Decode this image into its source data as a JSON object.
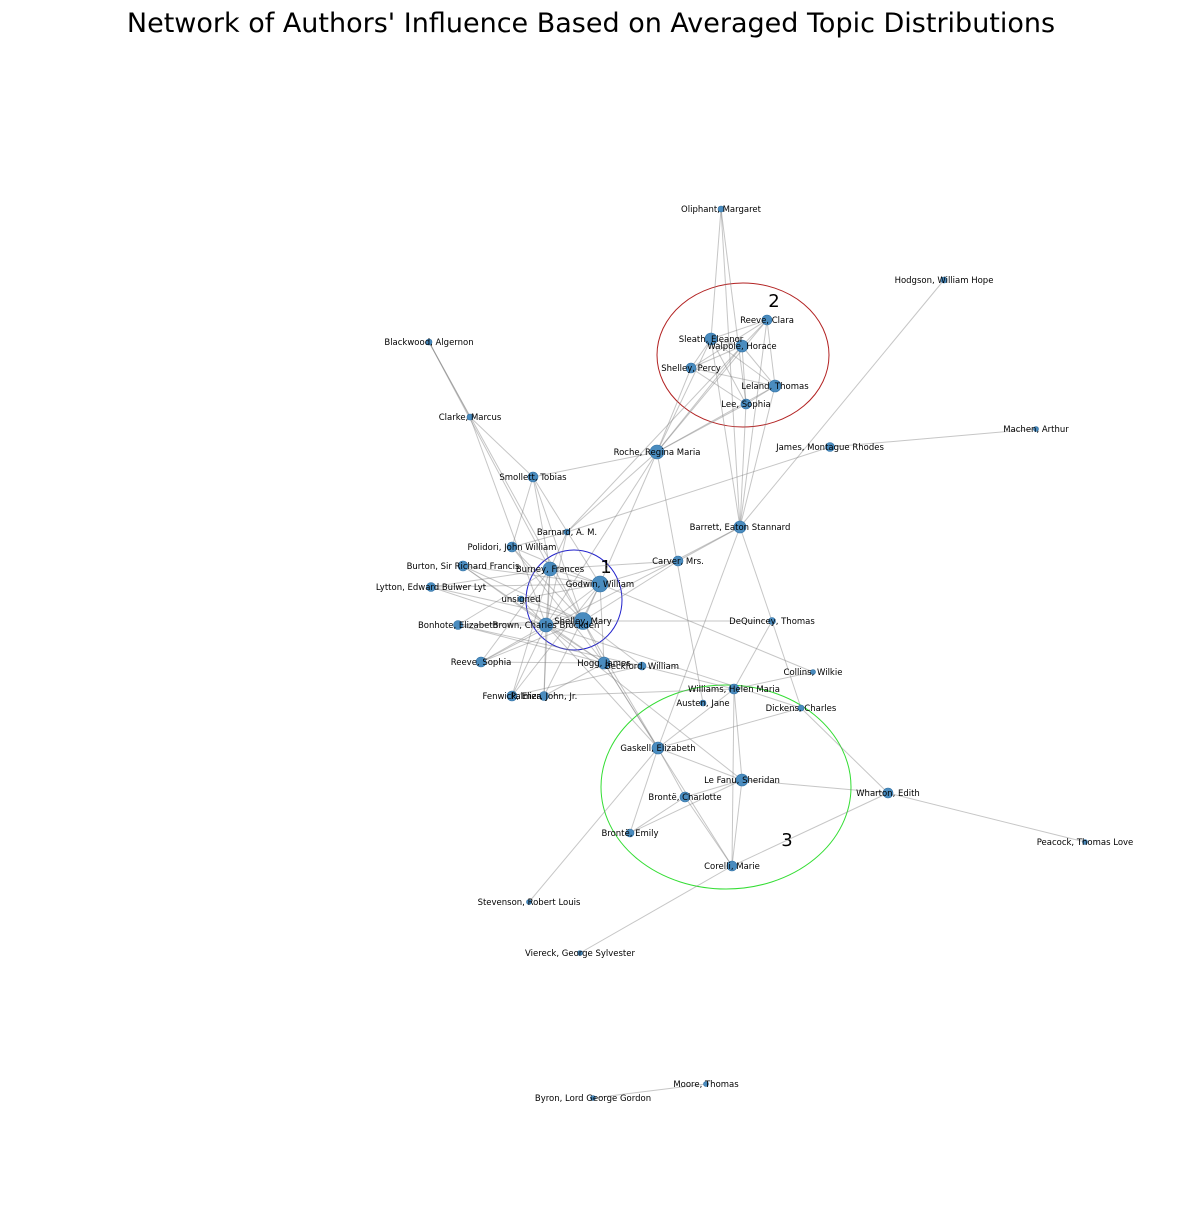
{
  "title": "Network of Authors' Influence Based on Averaged Topic Distributions",
  "colors": {
    "node": "#4a8cbf",
    "edge": "#808080",
    "cluster_1": "#2222cc",
    "cluster_2": "#b22222",
    "cluster_3": "#33dd33"
  },
  "nodes": [
    {
      "id": "oliphant",
      "label": "Oliphant, Margaret"
    },
    {
      "id": "hodgson",
      "label": "Hodgson, William Hope"
    },
    {
      "id": "reeve_clara",
      "label": "Reeve, Clara"
    },
    {
      "id": "sleath",
      "label": "Sleath, Eleanor"
    },
    {
      "id": "walpole",
      "label": "Walpole, Horace"
    },
    {
      "id": "blackwood",
      "label": "Blackwood, Algernon"
    },
    {
      "id": "shelley_percy",
      "label": "Shelley, Percy"
    },
    {
      "id": "leland",
      "label": "Leland, Thomas"
    },
    {
      "id": "lee",
      "label": "Lee, Sophia"
    },
    {
      "id": "clarke",
      "label": "Clarke, Marcus"
    },
    {
      "id": "machen",
      "label": "Machen, Arthur"
    },
    {
      "id": "james",
      "label": "James, Montague Rhodes"
    },
    {
      "id": "roche",
      "label": "Roche, Regina Maria"
    },
    {
      "id": "smollett",
      "label": "Smollett, Tobias"
    },
    {
      "id": "barrett",
      "label": "Barrett, Eaton Stannard"
    },
    {
      "id": "barnard",
      "label": "Barnard, A. M."
    },
    {
      "id": "polidori",
      "label": "Polidori, John William"
    },
    {
      "id": "carver",
      "label": "Carver, Mrs."
    },
    {
      "id": "burton",
      "label": "Burton, Sir Richard Francis"
    },
    {
      "id": "burney",
      "label": "Burney, Frances"
    },
    {
      "id": "godwin",
      "label": "Godwin, William"
    },
    {
      "id": "lytton",
      "label": "Lytton, Edward Bulwer Lyt"
    },
    {
      "id": "unsigned",
      "label": "unsigned"
    },
    {
      "id": "dequincey",
      "label": "DeQuincey, Thomas"
    },
    {
      "id": "shelley_mary",
      "label": "Shelley, Mary"
    },
    {
      "id": "bonhote",
      "label": "Bonhote, Elizabeth"
    },
    {
      "id": "brown",
      "label": "Brown, Charles Brockden"
    },
    {
      "id": "reeve_sophia",
      "label": "Reeve, Sophia"
    },
    {
      "id": "hogg",
      "label": "Hogg, James"
    },
    {
      "id": "beckford",
      "label": "Beckford, William"
    },
    {
      "id": "collins",
      "label": "Collins, Wilkie"
    },
    {
      "id": "williams",
      "label": "Williams, Helen Maria"
    },
    {
      "id": "fenwick",
      "label": "Fenwick, Eliza"
    },
    {
      "id": "palmer",
      "label": "Palmer, John, Jr."
    },
    {
      "id": "austen",
      "label": "Austen, Jane"
    },
    {
      "id": "dickens",
      "label": "Dickens, Charles"
    },
    {
      "id": "gaskell",
      "label": "Gaskell, Elizabeth"
    },
    {
      "id": "lefanu",
      "label": "Le Fanu, Sheridan"
    },
    {
      "id": "bronte_charlotte",
      "label": "Brontë, Charlotte"
    },
    {
      "id": "wharton",
      "label": "Wharton, Edith"
    },
    {
      "id": "peacock",
      "label": "Peacock, Thomas Love"
    },
    {
      "id": "bronte_emily",
      "label": "Brontë, Emily"
    },
    {
      "id": "corelli",
      "label": "Corelli, Marie"
    },
    {
      "id": "stevenson",
      "label": "Stevenson, Robert Louis"
    },
    {
      "id": "viereck",
      "label": "Viereck, George Sylvester"
    },
    {
      "id": "moore",
      "label": "Moore, Thomas"
    },
    {
      "id": "byron",
      "label": "Byron, Lord George Gordon"
    }
  ],
  "edges": [
    [
      "oliphant",
      "sleath"
    ],
    [
      "oliphant",
      "lee"
    ],
    [
      "oliphant",
      "barrett"
    ],
    [
      "hodgson",
      "barrett"
    ],
    [
      "machen",
      "james"
    ],
    [
      "james",
      "barnard"
    ],
    [
      "blackwood",
      "clarke"
    ],
    [
      "blackwood",
      "burney"
    ],
    [
      "blackwood",
      "shelley_mary"
    ],
    [
      "clarke",
      "smollett"
    ],
    [
      "clarke",
      "brown"
    ],
    [
      "reeve_clara",
      "sleath"
    ],
    [
      "reeve_clara",
      "walpole"
    ],
    [
      "reeve_clara",
      "shelley_percy"
    ],
    [
      "reeve_clara",
      "leland"
    ],
    [
      "reeve_clara",
      "roche"
    ],
    [
      "reeve_clara",
      "barrett"
    ],
    [
      "sleath",
      "walpole"
    ],
    [
      "sleath",
      "shelley_percy"
    ],
    [
      "sleath",
      "leland"
    ],
    [
      "sleath",
      "lee"
    ],
    [
      "sleath",
      "roche"
    ],
    [
      "sleath",
      "barrett"
    ],
    [
      "walpole",
      "shelley_percy"
    ],
    [
      "walpole",
      "leland"
    ],
    [
      "walpole",
      "lee"
    ],
    [
      "walpole",
      "roche"
    ],
    [
      "walpole",
      "barnard"
    ],
    [
      "shelley_percy",
      "lee"
    ],
    [
      "shelley_percy",
      "roche"
    ],
    [
      "shelley_percy",
      "leland"
    ],
    [
      "leland",
      "lee"
    ],
    [
      "leland",
      "roche"
    ],
    [
      "leland",
      "barrett"
    ],
    [
      "lee",
      "roche"
    ],
    [
      "lee",
      "barrett"
    ],
    [
      "roche",
      "smollett"
    ],
    [
      "roche",
      "godwin"
    ],
    [
      "roche",
      "austen"
    ],
    [
      "roche",
      "barnard"
    ],
    [
      "roche",
      "brown"
    ],
    [
      "smollett",
      "polidori"
    ],
    [
      "smollett",
      "burney"
    ],
    [
      "smollett",
      "shelley_mary"
    ],
    [
      "smollett",
      "godwin"
    ],
    [
      "barrett",
      "gaskell"
    ],
    [
      "barrett",
      "carver"
    ],
    [
      "barrett",
      "dequincey"
    ],
    [
      "barrett",
      "reeve_sophia"
    ],
    [
      "barnard",
      "polidori"
    ],
    [
      "barnard",
      "brown"
    ],
    [
      "barnard",
      "burney"
    ],
    [
      "polidori",
      "godwin"
    ],
    [
      "polidori",
      "shelley_mary"
    ],
    [
      "polidori",
      "hogg"
    ],
    [
      "carver",
      "godwin"
    ],
    [
      "carver",
      "shelley_mary"
    ],
    [
      "carver",
      "burney"
    ],
    [
      "burton",
      "shelley_mary"
    ],
    [
      "burton",
      "brown"
    ],
    [
      "burton",
      "hogg"
    ],
    [
      "burton",
      "godwin"
    ],
    [
      "lytton",
      "burney"
    ],
    [
      "lytton",
      "shelley_mary"
    ],
    [
      "lytton",
      "godwin"
    ],
    [
      "lytton",
      "brown"
    ],
    [
      "unsigned",
      "godwin"
    ],
    [
      "unsigned",
      "shelley_mary"
    ],
    [
      "unsigned",
      "brown"
    ],
    [
      "burney",
      "godwin"
    ],
    [
      "burney",
      "shelley_mary"
    ],
    [
      "burney",
      "brown"
    ],
    [
      "burney",
      "reeve_sophia"
    ],
    [
      "burney",
      "fenwick"
    ],
    [
      "burney",
      "palmer"
    ],
    [
      "burney",
      "bonhote"
    ],
    [
      "godwin",
      "shelley_mary"
    ],
    [
      "godwin",
      "brown"
    ],
    [
      "godwin",
      "hogg"
    ],
    [
      "godwin",
      "collins"
    ],
    [
      "godwin",
      "palmer"
    ],
    [
      "godwin",
      "fenwick"
    ],
    [
      "shelley_mary",
      "brown"
    ],
    [
      "shelley_mary",
      "hogg"
    ],
    [
      "shelley_mary",
      "dequincey"
    ],
    [
      "shelley_mary",
      "reeve_sophia"
    ],
    [
      "shelley_mary",
      "bonhote"
    ],
    [
      "shelley_mary",
      "gaskell"
    ],
    [
      "shelley_mary",
      "beckford"
    ],
    [
      "bonhote",
      "brown"
    ],
    [
      "bonhote",
      "hogg"
    ],
    [
      "bonhote",
      "beckford"
    ],
    [
      "brown",
      "hogg"
    ],
    [
      "brown",
      "reeve_sophia"
    ],
    [
      "brown",
      "palmer"
    ],
    [
      "brown",
      "fenwick"
    ],
    [
      "brown",
      "gaskell"
    ],
    [
      "brown",
      "lefanu"
    ],
    [
      "brown",
      "dickens"
    ],
    [
      "reeve_sophia",
      "hogg"
    ],
    [
      "hogg",
      "gaskell"
    ],
    [
      "hogg",
      "corelli"
    ],
    [
      "hogg",
      "palmer"
    ],
    [
      "beckford",
      "williams"
    ],
    [
      "beckford",
      "fenwick"
    ],
    [
      "dequincey",
      "williams"
    ],
    [
      "dequincey",
      "dickens"
    ],
    [
      "collins",
      "williams"
    ],
    [
      "williams",
      "gaskell"
    ],
    [
      "williams",
      "lefanu"
    ],
    [
      "williams",
      "corelli"
    ],
    [
      "williams",
      "palmer"
    ],
    [
      "dickens",
      "gaskell"
    ],
    [
      "dickens",
      "wharton"
    ],
    [
      "gaskell",
      "lefanu"
    ],
    [
      "gaskell",
      "bronte_charlotte"
    ],
    [
      "gaskell",
      "bronte_emily"
    ],
    [
      "gaskell",
      "stevenson"
    ],
    [
      "lefanu",
      "bronte_charlotte"
    ],
    [
      "lefanu",
      "bronte_emily"
    ],
    [
      "lefanu",
      "wharton"
    ],
    [
      "lefanu",
      "corelli"
    ],
    [
      "bronte_charlotte",
      "bronte_emily"
    ],
    [
      "bronte_charlotte",
      "corelli"
    ],
    [
      "wharton",
      "peacock"
    ],
    [
      "wharton",
      "corelli"
    ],
    [
      "corelli",
      "viereck"
    ],
    [
      "moore",
      "byron"
    ]
  ],
  "clusters": [
    {
      "label": "1"
    },
    {
      "label": "2"
    },
    {
      "label": "3"
    }
  ]
}
